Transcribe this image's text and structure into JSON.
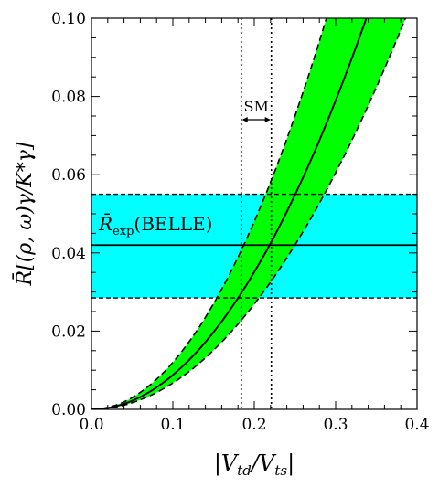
{
  "chart_data": {
    "type": "line",
    "xlabel": "|V_td/V_ts|",
    "ylabel": "R̄[(ρ, ω)γ/K*γ]",
    "xlim": [
      0.0,
      0.4
    ],
    "ylim": [
      0.0,
      0.1
    ],
    "x_ticks": [
      "0.0",
      "0.1",
      "0.2",
      "0.3",
      "0.4"
    ],
    "y_ticks": [
      "0.00",
      "0.02",
      "0.04",
      "0.06",
      "0.08",
      "0.10"
    ],
    "curve": {
      "x": [
        0.0,
        0.02,
        0.04,
        0.06,
        0.08,
        0.1,
        0.12,
        0.14,
        0.16,
        0.18,
        0.2,
        0.22,
        0.24,
        0.26,
        0.28,
        0.3,
        0.32,
        0.34
      ],
      "central": [
        0.0,
        0.0004,
        0.0014,
        0.0032,
        0.0056,
        0.0088,
        0.0126,
        0.0172,
        0.0225,
        0.0284,
        0.0351,
        0.0425,
        0.0505,
        0.0593,
        0.0688,
        0.0789,
        0.0898,
        0.1
      ],
      "upper": [
        0.0,
        0.0005,
        0.0019,
        0.0043,
        0.0077,
        0.012,
        0.0173,
        0.0235,
        0.0307,
        0.0389,
        0.048,
        0.0581,
        0.0691,
        0.0811,
        0.0941,
        0.1,
        0.1,
        0.1
      ],
      "lower": [
        0.0,
        0.0003,
        0.0011,
        0.0024,
        0.0043,
        0.0067,
        0.0097,
        0.0132,
        0.0172,
        0.0218,
        0.0269,
        0.0326,
        0.0387,
        0.0454,
        0.0527,
        0.0605,
        0.0688,
        0.0777
      ],
      "band_color": "#00ff00"
    },
    "belle_band": {
      "label": "R̄exp(BELLE)",
      "label_main": "R̄",
      "label_sub": "exp",
      "label_rest": "(BELLE)",
      "central": 0.042,
      "low": 0.0285,
      "high": 0.055,
      "color": "#00ffff"
    },
    "sm_range": {
      "label": "SM",
      "x_low": 0.184,
      "x_high": 0.221
    }
  }
}
